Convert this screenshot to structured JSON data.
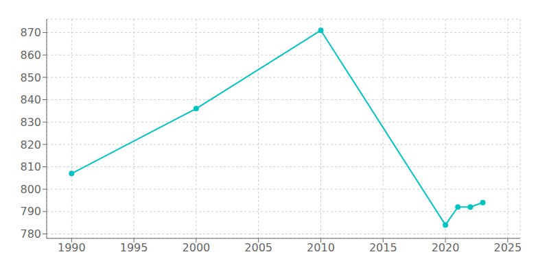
{
  "chart_data": {
    "type": "line",
    "x": [
      1990,
      2000,
      2010,
      2020,
      2021,
      2022,
      2023
    ],
    "values": [
      807,
      836,
      871,
      784,
      792,
      792,
      794
    ],
    "color": "#00c4c4",
    "marker": "circle",
    "xlim": [
      1988,
      2026
    ],
    "ylim": [
      778,
      876
    ],
    "xticks": [
      1990,
      1995,
      2000,
      2005,
      2010,
      2015,
      2020,
      2025
    ],
    "yticks": [
      780,
      790,
      800,
      810,
      820,
      830,
      840,
      850,
      860,
      870
    ],
    "grid": true
  }
}
